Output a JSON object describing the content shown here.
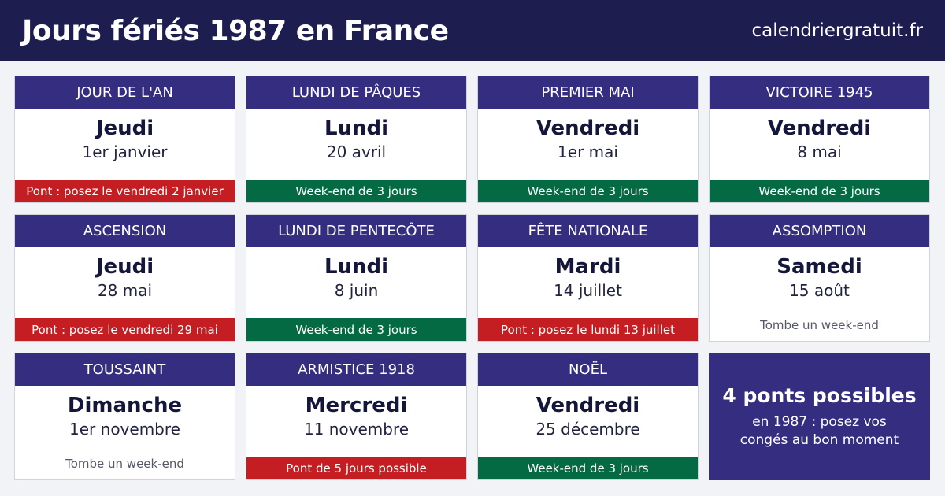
{
  "header": {
    "title": "Jours fériés 1987 en France",
    "site": "calendriergratuit.fr"
  },
  "holidays": [
    {
      "name": "JOUR DE L'AN",
      "day": "Jeudi",
      "date": "1er janvier",
      "note": "Pont : posez le vendredi 2 janvier",
      "note_type": "pont"
    },
    {
      "name": "LUNDI DE PÂQUES",
      "day": "Lundi",
      "date": "20 avril",
      "note": "Week-end de 3 jours",
      "note_type": "weekend"
    },
    {
      "name": "PREMIER MAI",
      "day": "Vendredi",
      "date": "1er mai",
      "note": "Week-end de 3 jours",
      "note_type": "weekend"
    },
    {
      "name": "VICTOIRE 1945",
      "day": "Vendredi",
      "date": "8 mai",
      "note": "Week-end de 3 jours",
      "note_type": "weekend"
    },
    {
      "name": "ASCENSION",
      "day": "Jeudi",
      "date": "28 mai",
      "note": "Pont : posez le vendredi 29 mai",
      "note_type": "pont"
    },
    {
      "name": "LUNDI DE PENTECÔTE",
      "day": "Lundi",
      "date": "8 juin",
      "note": "Week-end de 3 jours",
      "note_type": "weekend"
    },
    {
      "name": "FÊTE NATIONALE",
      "day": "Mardi",
      "date": "14 juillet",
      "note": "Pont : posez le lundi 13 juillet",
      "note_type": "pont"
    },
    {
      "name": "ASSOMPTION",
      "day": "Samedi",
      "date": "15 août",
      "note": "Tombe un week-end",
      "note_type": "plain"
    },
    {
      "name": "TOUSSAINT",
      "day": "Dimanche",
      "date": "1er novembre",
      "note": "Tombe un week-end",
      "note_type": "plain"
    },
    {
      "name": "ARMISTICE 1918",
      "day": "Mercredi",
      "date": "11 novembre",
      "note": "Pont de 5 jours possible",
      "note_type": "pont"
    },
    {
      "name": "NOËL",
      "day": "Vendredi",
      "date": "25 décembre",
      "note": "Week-end de 3 jours",
      "note_type": "weekend"
    }
  ],
  "summary": {
    "title": "4 ponts possibles",
    "text": "en 1987 : posez vos congés au bon moment"
  },
  "colors": {
    "header_bg": "#1d1d4f",
    "card_head_bg": "#352e80",
    "pont": "#c41e22",
    "weekend": "#046a43"
  }
}
